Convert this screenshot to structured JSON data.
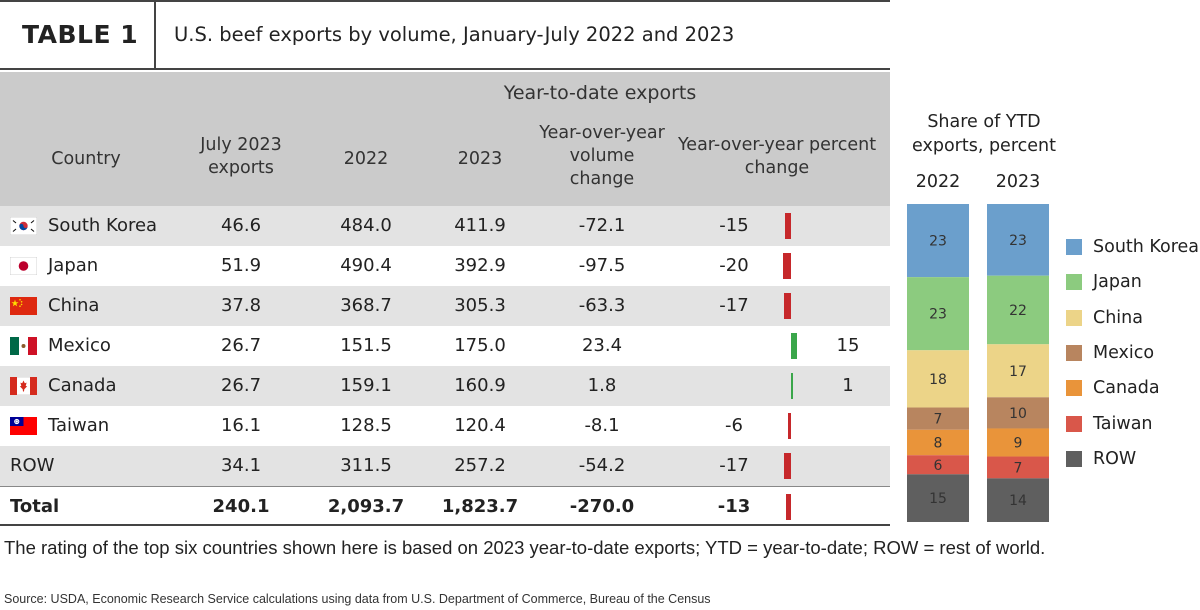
{
  "header": {
    "tag": "TABLE 1",
    "title": "U.S. beef exports by volume, January-July 2022 and 2023"
  },
  "table": {
    "group_header": "Year-to-date exports",
    "columns": {
      "country": "Country",
      "july": "July 2023 exports",
      "y2022": "2022",
      "y2023": "2023",
      "vol_change": "Year-over-year volume change",
      "pct_change": "Year-over-year percent change"
    },
    "rows": [
      {
        "country": "South Korea",
        "flag": "south-korea-flag-icon",
        "july": "46.6",
        "y2022": "484.0",
        "y2023": "411.9",
        "vol_change": "-72.1",
        "pct_change": "-15",
        "pct": -15
      },
      {
        "country": "Japan",
        "flag": "japan-flag-icon",
        "july": "51.9",
        "y2022": "490.4",
        "y2023": "392.9",
        "vol_change": "-97.5",
        "pct_change": "-20",
        "pct": -20
      },
      {
        "country": "China",
        "flag": "china-flag-icon",
        "july": "37.8",
        "y2022": "368.7",
        "y2023": "305.3",
        "vol_change": "-63.3",
        "pct_change": "-17",
        "pct": -17
      },
      {
        "country": "Mexico",
        "flag": "mexico-flag-icon",
        "july": "26.7",
        "y2022": "151.5",
        "y2023": "175.0",
        "vol_change": "23.4",
        "pct_change": "15",
        "pct": 15
      },
      {
        "country": "Canada",
        "flag": "canada-flag-icon",
        "july": "26.7",
        "y2022": "159.1",
        "y2023": "160.9",
        "vol_change": "1.8",
        "pct_change": "1",
        "pct": 1
      },
      {
        "country": "Taiwan",
        "flag": "taiwan-flag-icon",
        "july": "16.1",
        "y2022": "128.5",
        "y2023": "120.4",
        "vol_change": "-8.1",
        "pct_change": "-6",
        "pct": -6
      },
      {
        "country": "ROW",
        "flag": "",
        "july": "34.1",
        "y2022": "311.5",
        "y2023": "257.2",
        "vol_change": "-54.2",
        "pct_change": "-17",
        "pct": -17
      }
    ],
    "total": {
      "country": "Total",
      "july": "240.1",
      "y2022": "2,093.7",
      "y2023": "1,823.7",
      "vol_change": "-270.0",
      "pct_change": "-13",
      "pct": -13
    }
  },
  "chart_data": {
    "type": "bar",
    "stacked": true,
    "title": "Share of YTD exports, percent",
    "categories": [
      "2022",
      "2023"
    ],
    "series": [
      {
        "name": "South Korea",
        "color": "#6b9fcc",
        "values": [
          23,
          23
        ]
      },
      {
        "name": "Japan",
        "color": "#8ccb7f",
        "values": [
          23,
          22
        ]
      },
      {
        "name": "China",
        "color": "#ecd488",
        "values": [
          18,
          17
        ]
      },
      {
        "name": "Mexico",
        "color": "#b8855f",
        "values": [
          7,
          10
        ]
      },
      {
        "name": "Canada",
        "color": "#e9943a",
        "values": [
          8,
          9
        ]
      },
      {
        "name": "Taiwan",
        "color": "#d9574a",
        "values": [
          6,
          7
        ]
      },
      {
        "name": "ROW",
        "color": "#5f5f5f",
        "values": [
          15,
          14
        ]
      }
    ],
    "legend": "right",
    "grid": false
  },
  "colors": {
    "negative_bar": "#c6282b",
    "positive_bar": "#3aa64a",
    "header_bg": "#cbcbcb",
    "row_shade": "#e3e3e3"
  },
  "footer": {
    "note": "The rating of the top six countries shown here is based on 2023 year-to-date exports; YTD = year-to-date; ROW = rest of world.",
    "source": "Source: USDA, Economic Research Service calculations using data from U.S. Department of Commerce, Bureau of the Census"
  }
}
